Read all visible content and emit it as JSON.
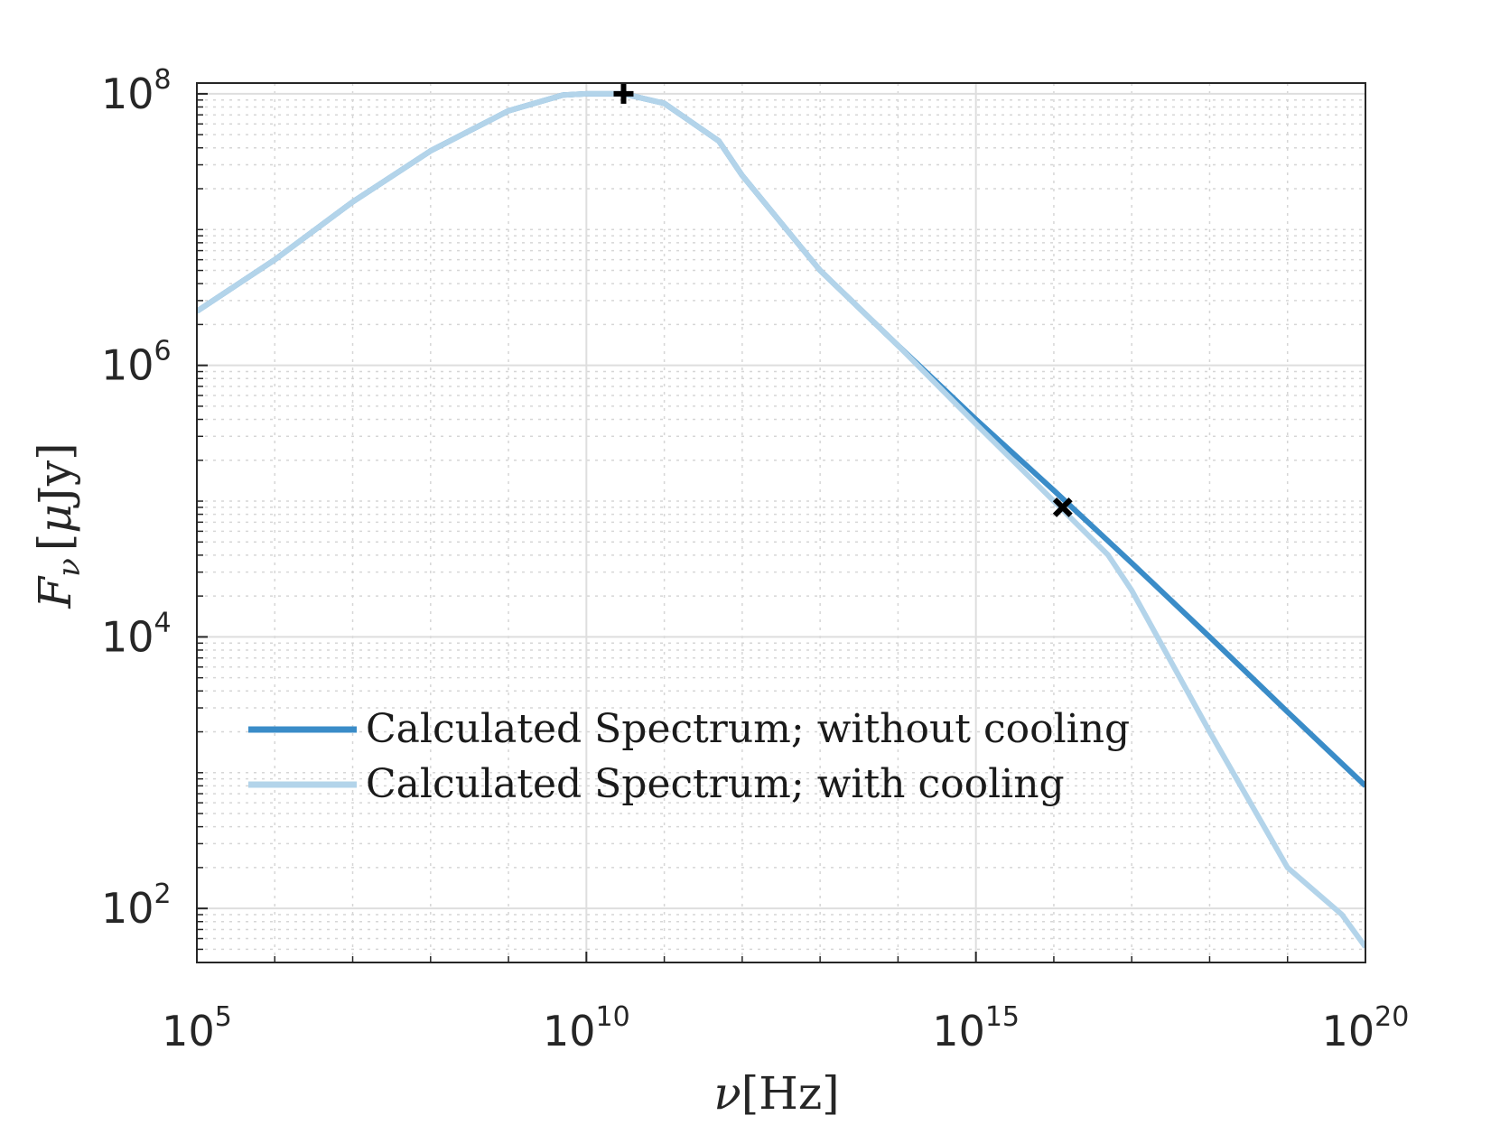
{
  "chart_data": {
    "type": "line",
    "x_scale": "log",
    "y_scale": "log",
    "xlim": [
      100000,
      100000000000000000000
    ],
    "ylim": [
      40,
      120000000
    ],
    "x_ticks": [
      {
        "base": "10",
        "exp": "5",
        "value": 100000
      },
      {
        "base": "10",
        "exp": "10",
        "value": 10000000000
      },
      {
        "base": "10",
        "exp": "15",
        "value": 1000000000000000
      },
      {
        "base": "10",
        "exp": "20",
        "value": 100000000000000000000
      }
    ],
    "y_ticks": [
      {
        "base": "10",
        "exp": "2",
        "value": 100
      },
      {
        "base": "10",
        "exp": "4",
        "value": 10000
      },
      {
        "base": "10",
        "exp": "6",
        "value": 1000000
      },
      {
        "base": "10",
        "exp": "8",
        "value": 100000000
      }
    ],
    "xlabel": {
      "main": "ν",
      "unit": "[Hz]"
    },
    "ylabel": {
      "main": "F",
      "sub": "ν",
      "unit_open": "[",
      "unit_mu": "μ",
      "unit_rest": "Jy]"
    },
    "grid": true,
    "minor_grid": true,
    "legend_position": "lower-left",
    "series": [
      {
        "name": "Calculated Spectrum; without cooling",
        "color": "#3a8cc8",
        "points": [
          [
            100000,
            2500000
          ],
          [
            1000000,
            6000000
          ],
          [
            10000000,
            16000000
          ],
          [
            100000000,
            38000000
          ],
          [
            1000000000,
            75000000
          ],
          [
            5000000000,
            98000000
          ],
          [
            10000000000,
            100000000
          ],
          [
            30000000000,
            100000000
          ],
          [
            100000000000,
            85000000
          ],
          [
            500000000000,
            45000000
          ],
          [
            1000000000000,
            25000000
          ],
          [
            10000000000000,
            5000000
          ],
          [
            100000000000000,
            1400000
          ],
          [
            1000000000000000,
            400000
          ],
          [
            10000000000000000,
            120000
          ],
          [
            100000000000000000,
            35000
          ],
          [
            1000000000000000000,
            10000
          ],
          [
            10000000000000000000,
            2800
          ],
          [
            100000000000000000000,
            800
          ]
        ]
      },
      {
        "name": "Calculated Spectrum; with cooling",
        "color": "#b3d4ea",
        "points": [
          [
            100000,
            2500000
          ],
          [
            1000000,
            6000000
          ],
          [
            10000000,
            16000000
          ],
          [
            100000000,
            38000000
          ],
          [
            1000000000,
            75000000
          ],
          [
            5000000000,
            98000000
          ],
          [
            10000000000,
            100000000
          ],
          [
            30000000000,
            100000000
          ],
          [
            100000000000,
            85000000
          ],
          [
            500000000000,
            45000000
          ],
          [
            1000000000000,
            25000000
          ],
          [
            10000000000000,
            5000000
          ],
          [
            100000000000000,
            1400000
          ],
          [
            1000000000000000,
            370000
          ],
          [
            10000000000000000,
            100000
          ],
          [
            50000000000000000,
            40000
          ],
          [
            100000000000000000,
            22000
          ],
          [
            1000000000000000000,
            2000
          ],
          [
            10000000000000000000,
            200
          ],
          [
            50000000000000000000,
            90
          ],
          [
            100000000000000000000,
            52
          ]
        ]
      }
    ],
    "markers": [
      {
        "name": "peak",
        "symbol": "plus",
        "x": 30000000000,
        "y": 100000000
      },
      {
        "name": "cooling break",
        "symbol": "cross",
        "x": 13000000000000000,
        "y": 90000
      }
    ]
  }
}
